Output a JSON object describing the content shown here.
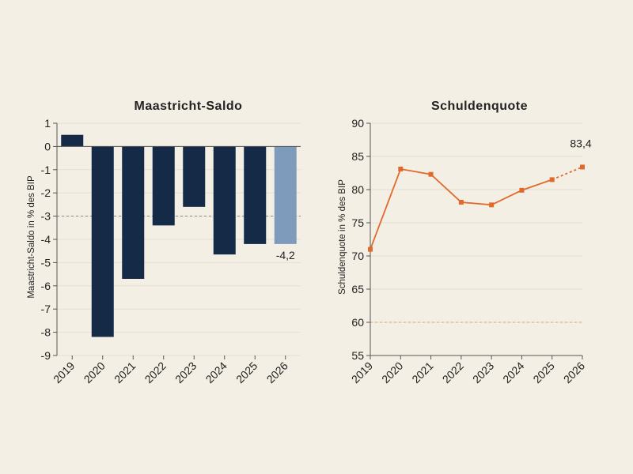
{
  "colors": {
    "background": "#f3efe4",
    "bar": "#152a47",
    "bar_forecast": "#7f9bbb",
    "line": "#e06a2c",
    "grid": "#e4dfd2",
    "axis": "#555555",
    "reference_left": "#888888",
    "reference_right": "#e0a070"
  },
  "chart_data": [
    {
      "type": "bar",
      "title": "Maastricht-Saldo",
      "ylabel": "Maastricht-Saldo in % des BIP",
      "xlabel": "",
      "categories": [
        "2019",
        "2020",
        "2021",
        "2022",
        "2023",
        "2024",
        "2025",
        "2026"
      ],
      "values": [
        0.5,
        -8.2,
        -5.7,
        -3.4,
        -2.6,
        -4.65,
        -4.2,
        -4.2
      ],
      "forecast_from_index": 7,
      "ylim": [
        -9,
        1
      ],
      "yticks": [
        "1",
        "0",
        "-1",
        "-2",
        "-3",
        "-4",
        "-5",
        "-6",
        "-7",
        "-8",
        "-9"
      ],
      "reference_line": -3,
      "grid": true,
      "annotation": {
        "category": "2026",
        "text": "-4,2"
      }
    },
    {
      "type": "line",
      "title": "Schuldenquote",
      "ylabel": "Schuldenquote in % des BIP",
      "xlabel": "",
      "categories": [
        "2019",
        "2020",
        "2021",
        "2022",
        "2023",
        "2024",
        "2025",
        "2026"
      ],
      "values": [
        71.0,
        83.1,
        82.3,
        78.1,
        77.7,
        79.9,
        81.5,
        83.4
      ],
      "forecast_from_index": 6,
      "ylim": [
        55,
        90
      ],
      "yticks": [
        "90",
        "85",
        "80",
        "75",
        "70",
        "65",
        "60",
        "55"
      ],
      "reference_line": 60,
      "grid": true,
      "annotation": {
        "category": "2026",
        "text": "83,4"
      }
    }
  ]
}
